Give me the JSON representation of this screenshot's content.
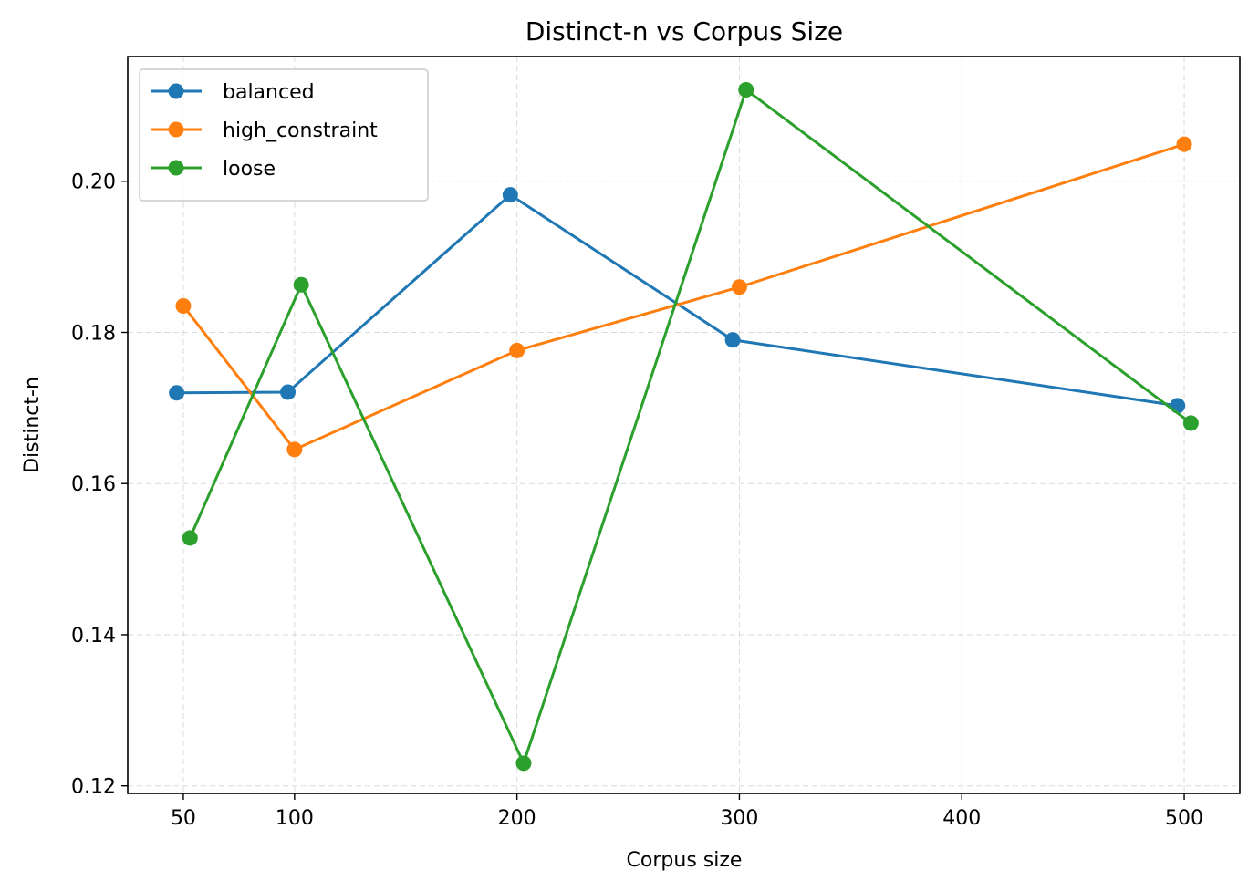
{
  "chart_data": {
    "type": "line",
    "title": "Distinct-n vs Corpus Size",
    "xlabel": "Corpus size",
    "ylabel": "Distinct-n",
    "xlim": [
      25,
      525
    ],
    "ylim": [
      0.119,
      0.2165
    ],
    "xticks": [
      50,
      100,
      200,
      300,
      400,
      500
    ],
    "yticks": [
      0.12,
      0.14,
      0.16,
      0.18,
      0.2
    ],
    "ytick_labels": [
      "0.12",
      "0.14",
      "0.16",
      "0.18",
      "0.20"
    ],
    "grid": true,
    "legend_position": "top-left",
    "series": [
      {
        "name": "balanced",
        "color": "#1f77b4",
        "x": [
          47,
          97,
          197,
          297,
          497
        ],
        "y": [
          0.172,
          0.1721,
          0.1982,
          0.179,
          0.1703
        ]
      },
      {
        "name": "high_constraint",
        "color": "#ff7f0e",
        "x": [
          50,
          100,
          200,
          300,
          500
        ],
        "y": [
          0.1835,
          0.1645,
          0.1776,
          0.186,
          0.2049
        ]
      },
      {
        "name": "loose",
        "color": "#2ca02c",
        "x": [
          53,
          103,
          203,
          303,
          503
        ],
        "y": [
          0.1528,
          0.1863,
          0.123,
          0.2121,
          0.168
        ]
      }
    ]
  }
}
